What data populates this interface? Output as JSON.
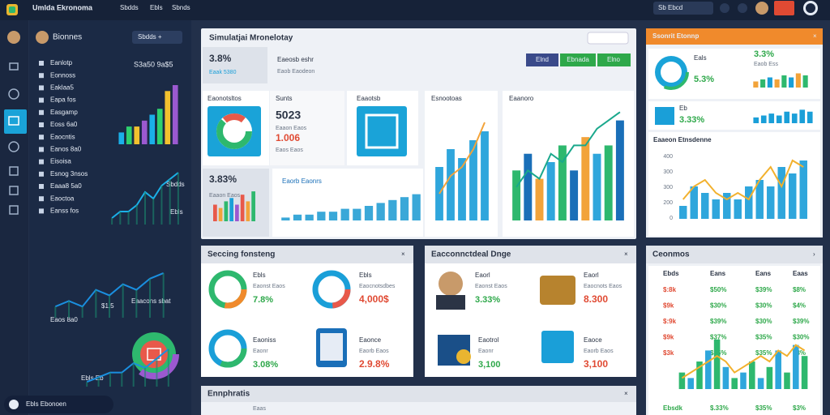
{
  "topbar": {
    "brand": "Umlda Ekronoma",
    "menu": [
      "Sbdds",
      "Ebls",
      "Sbnds"
    ],
    "search": "Sb Ebcd"
  },
  "sidebar": {
    "title": "Bionnes",
    "button": "Sbdds +",
    "stat": "S3a50 9a$5",
    "items": [
      "Eanlotp",
      "Eonnoss",
      "Eaklaa5",
      "Eapa fos",
      "Easgamp",
      "Eoss 6a0",
      "Eaocntis",
      "Eanos 8a0",
      "Eisoisa",
      "Esnog 3nsos",
      "Eaaa8 5a0",
      "Eaoctoa",
      "Eanss fos"
    ],
    "notes": [
      "Sbdds",
      "Ebls",
      "$1.5",
      "Eaacons sbat",
      "Eaos 8a0",
      "Ebls Eb"
    ],
    "footer": "Ebls Ebonoen"
  },
  "overview": {
    "title": "Simulatjai Mronelotay",
    "kpi": "3.8%",
    "kpi_sub": "Eaak 5380",
    "tag": "Eaeosb eshr",
    "tag_sub": "Eaob Eaodeon",
    "buttons": [
      "Elnd",
      "Ebnada",
      "Elno"
    ],
    "cards": [
      "Eaonotsltos",
      "Sunts",
      "Eaaotsb"
    ],
    "big": "5023",
    "big_sub": "Eaaon Eaos",
    "red": "1.006",
    "red_sub": "Eaos Eaos",
    "mini_kpi": "3.83%",
    "mini_sub": "Eaaon Eaos",
    "chart_title": "Eaorb Eaonrs",
    "right_title": "Esnootoas",
    "far_title": "Eaanoro"
  },
  "right_top": {
    "title": "Ssonrit Etonnp",
    "k1": "3.3%",
    "k1_sub": "Eaob Ess",
    "k2": "5.3%",
    "k2_label": "Eals",
    "k3": "3.33%",
    "k3_label": "Eb",
    "chart_title": "Eaaeon Etnsdenne",
    "axis_labels": [
      "400",
      "300",
      "300",
      "200",
      "0"
    ]
  },
  "card_a": {
    "title": "Seccing fonsteng",
    "items": [
      {
        "label": "Ebls",
        "sub": "Eaonst Eaos",
        "value": "7.8%"
      },
      {
        "label": "Ebls",
        "sub": "Eaocnotsdbes",
        "value": "4,000$"
      },
      {
        "label": "Eaoniss",
        "sub": "Eaonr",
        "value": "3.08%"
      },
      {
        "label": "Eaonce",
        "sub": "Eaorb Eaos",
        "value": "2.9.8%"
      }
    ]
  },
  "card_b": {
    "title": "Eacconnctdeal Dnge",
    "items": [
      {
        "label": "Eaorl",
        "sub": "Eaonst Eaos",
        "value": "3.33%"
      },
      {
        "label": "Eaorl",
        "sub": "Eaocnots Eaos",
        "value": "8.300"
      },
      {
        "label": "Eaotrol",
        "sub": "Eaonr",
        "value": "3,100"
      },
      {
        "label": "Eaoce",
        "sub": "Eaorb Eaos",
        "value": "3,100"
      }
    ]
  },
  "bottom": {
    "title": "Ennphratis",
    "sub": "Eaas"
  },
  "right_bottom": {
    "title": "Ceonmos",
    "header": [
      "Ebds",
      "Eans",
      "Eans",
      "Eaas"
    ],
    "rows": [
      [
        "$:8k",
        "$50%",
        "$39%",
        "$8%"
      ],
      [
        "$9k",
        "$30%",
        "$30%",
        "$4%"
      ],
      [
        "$:9k",
        "$39%",
        "$30%",
        "$39%"
      ],
      [
        "$9k",
        "$37%",
        "$35%",
        "$30%"
      ],
      [
        "$3k",
        "$35%",
        "$35%",
        "$3%"
      ]
    ],
    "footer": [
      "Ebsdk",
      "$.33%",
      "$35%",
      "$3%"
    ]
  },
  "charts": [
    {
      "type": "bar",
      "values": [
        2,
        3,
        3,
        4,
        5,
        6,
        9,
        10
      ],
      "colors": [
        "#1ab0e8",
        "#2ed06e",
        "#f2c12e",
        "#9b59d0"
      ],
      "ylim": [
        0,
        10
      ]
    },
    {
      "type": "line",
      "values": [
        1,
        2,
        2,
        3,
        5,
        4,
        6,
        7,
        8
      ],
      "colors": [
        "#1ab0e8"
      ],
      "ylim": [
        0,
        9
      ]
    },
    {
      "type": "line",
      "values": [
        2,
        3,
        2,
        5,
        4,
        6,
        5,
        7,
        8
      ],
      "colors": [
        "#1a8fe0"
      ],
      "ylim": [
        0,
        9
      ]
    },
    {
      "type": "line",
      "values": [
        1,
        2,
        3,
        3,
        5,
        4,
        6,
        8
      ],
      "colors": [
        "#1a8fe0"
      ],
      "ylim": [
        0,
        9
      ]
    },
    {
      "type": "bar",
      "values": [
        5,
        4,
        6,
        7,
        5,
        8,
        6,
        9
      ],
      "colors": [
        "#e8594a",
        "#f2a33a",
        "#2eb86e",
        "#1a9fd8",
        "#9b59d0"
      ],
      "ylim": [
        0,
        10
      ]
    },
    {
      "type": "bar",
      "values": [
        1,
        2,
        2,
        3,
        3,
        4,
        4,
        5,
        6,
        7,
        8,
        9
      ],
      "colors": [
        "#3aa8d8"
      ],
      "ylim": [
        0,
        10
      ]
    },
    {
      "type": "bar",
      "values": [
        6,
        8,
        7,
        9,
        10
      ],
      "line": [
        3,
        5,
        6,
        8,
        11
      ],
      "colors": [
        "#2fa6dc"
      ],
      "line_color": "#f2a33a",
      "ylim": [
        0,
        12
      ]
    },
    {
      "type": "bar",
      "values": [
        6,
        8,
        5,
        7,
        9,
        6,
        10,
        8,
        9,
        12
      ],
      "line": [
        4,
        6,
        5,
        8,
        7,
        9,
        9,
        11,
        12,
        13
      ],
      "colors": [
        "#2eb86e",
        "#1a6fb8",
        "#f2a33a",
        "#2fa6dc"
      ],
      "line_color": "#1aa88c",
      "ylim": [
        0,
        14
      ]
    },
    {
      "type": "bar",
      "values": [
        3,
        4,
        5,
        4,
        6,
        5,
        7,
        6
      ],
      "colors": [
        "#f2a33a",
        "#2eb86e",
        "#1a9fd8"
      ],
      "ylim": [
        0,
        8
      ]
    },
    {
      "type": "bar",
      "values": [
        3,
        4,
        5,
        4,
        6,
        5,
        7,
        6
      ],
      "colors": [
        "#1a9fd8"
      ],
      "ylim": [
        0,
        8
      ]
    },
    {
      "type": "bar",
      "values": [
        2,
        5,
        4,
        3,
        4,
        3,
        5,
        6,
        5,
        8,
        7,
        9
      ],
      "line": [
        3,
        5,
        6,
        4,
        3,
        4,
        3,
        6,
        8,
        5,
        9,
        8
      ],
      "colors": [
        "#2fa6dc"
      ],
      "line_color": "#f2b12e",
      "ylim": [
        0,
        10
      ]
    },
    {
      "type": "bar",
      "values": [
        3,
        2,
        5,
        7,
        9,
        4,
        2,
        3,
        5,
        2,
        4,
        7,
        3,
        8,
        6
      ],
      "colors": [
        "#2eb86e",
        "#2fa6dc"
      ],
      "line": [
        2,
        3,
        4,
        5,
        6,
        5,
        3,
        4,
        5,
        6,
        5,
        7,
        6,
        8,
        7
      ],
      "line_color": "#f2b12e",
      "ylim": [
        0,
        10
      ]
    }
  ]
}
